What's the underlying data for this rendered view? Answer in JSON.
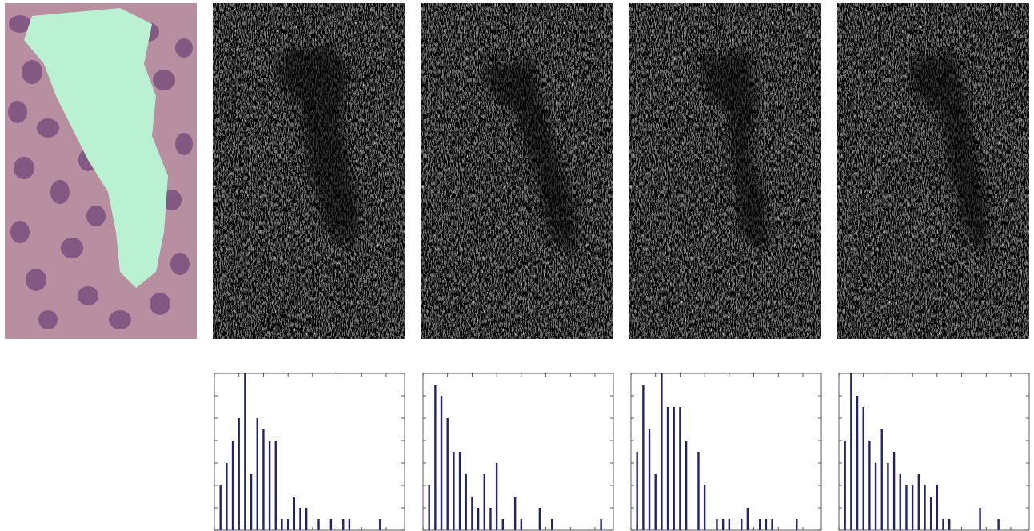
{
  "chart_data": [
    {
      "type": "bar",
      "x": [
        1,
        2,
        3,
        4,
        5,
        6,
        7,
        8,
        9,
        10,
        11,
        12,
        13,
        14,
        15,
        17,
        19,
        21,
        22,
        27
      ],
      "values": [
        2,
        3,
        4,
        5,
        7,
        2.5,
        5,
        4.5,
        4,
        4,
        0.5,
        0.5,
        1.5,
        1,
        1,
        0.5,
        0.5,
        0.5,
        0.5,
        0.5
      ],
      "color": "#23236b",
      "xlim": [
        0,
        31
      ],
      "ylim": [
        0,
        7
      ],
      "xticks": [
        0,
        4,
        8,
        12,
        16,
        20,
        24,
        28
      ],
      "yticks": [
        0,
        1,
        2,
        3,
        4,
        5,
        6,
        7
      ]
    },
    {
      "type": "bar",
      "x": [
        1,
        2,
        3,
        4,
        5,
        6,
        7,
        8,
        9,
        10,
        11,
        12,
        13,
        15,
        16,
        19,
        21,
        29
      ],
      "values": [
        2,
        6.5,
        6,
        5,
        3.5,
        3.5,
        2.5,
        1.5,
        1,
        2.5,
        1,
        3,
        0.5,
        1.5,
        0.5,
        1,
        0.5,
        0.5
      ],
      "color": "#23236b",
      "xlim": [
        0,
        31
      ],
      "ylim": [
        0,
        7
      ],
      "xticks": [
        0,
        4,
        8,
        12,
        16,
        20,
        24,
        28
      ],
      "yticks": [
        0,
        1,
        2,
        3,
        4,
        5,
        6,
        7
      ]
    },
    {
      "type": "bar",
      "x": [
        1,
        2,
        3,
        4,
        5,
        6,
        7,
        8,
        9,
        11,
        12,
        14,
        15,
        16,
        18,
        19,
        21,
        22,
        23,
        27
      ],
      "values": [
        3.5,
        6.5,
        4.5,
        2.5,
        7,
        5.5,
        5.5,
        5.5,
        4,
        3.5,
        2,
        0.5,
        0.5,
        0.5,
        0.5,
        1,
        0.5,
        0.5,
        0.5,
        0.5
      ],
      "color": "#23236b",
      "xlim": [
        0,
        31
      ],
      "ylim": [
        0,
        7
      ],
      "xticks": [
        0,
        4,
        8,
        12,
        16,
        20,
        24,
        28
      ],
      "yticks": [
        0,
        1,
        2,
        3,
        4,
        5,
        6,
        7
      ]
    },
    {
      "type": "bar",
      "x": [
        1,
        2,
        3,
        4,
        5,
        6,
        7,
        8,
        9,
        10,
        11,
        12,
        13,
        14,
        15,
        16,
        17,
        18,
        23,
        26
      ],
      "values": [
        4,
        7,
        6,
        5.5,
        4,
        3,
        4.5,
        3,
        3.5,
        2.5,
        2,
        2,
        2.5,
        2,
        1.5,
        2,
        0.5,
        0.5,
        1,
        0.5
      ],
      "color": "#23236b",
      "xlim": [
        0,
        31
      ],
      "ylim": [
        0,
        7
      ],
      "xticks": [
        0,
        4,
        8,
        12,
        16,
        20,
        24,
        28
      ],
      "yticks": [
        0,
        1,
        2,
        3,
        4,
        5,
        6,
        7
      ]
    }
  ]
}
